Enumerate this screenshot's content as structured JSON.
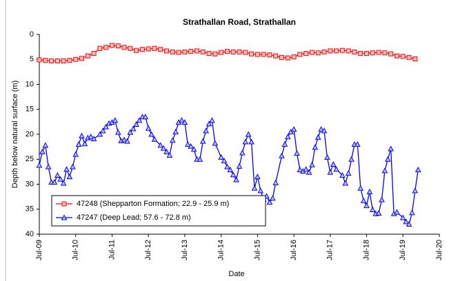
{
  "chart_data": {
    "type": "line",
    "title": "Strathallan Road, Strathallan",
    "x_label": "Date",
    "y_label": "Depth below natural surface (m)",
    "ylim": [
      0,
      40
    ],
    "yticks": [
      0,
      5,
      10,
      15,
      20,
      25,
      30,
      35,
      40
    ],
    "y_inverted": true,
    "xlim": [
      "2009-07",
      "2020-07"
    ],
    "xticks": [
      {
        "value": "2009-07",
        "label": "Jul-09"
      },
      {
        "value": "2010-07",
        "label": "Jul-10"
      },
      {
        "value": "2011-07",
        "label": "Jul-11"
      },
      {
        "value": "2012-07",
        "label": "Jul-12"
      },
      {
        "value": "2013-07",
        "label": "Jul-13"
      },
      {
        "value": "2014-07",
        "label": "Jul-14"
      },
      {
        "value": "2015-07",
        "label": "Jul-15"
      },
      {
        "value": "2016-07",
        "label": "Jul-16"
      },
      {
        "value": "2017-07",
        "label": "Jul-17"
      },
      {
        "value": "2018-07",
        "label": "Jul-18"
      },
      {
        "value": "2019-07",
        "label": "Jul-19"
      },
      {
        "value": "2020-07",
        "label": "Jul-20"
      }
    ],
    "legend": "lower left",
    "grid": false,
    "series": [
      {
        "name": "47248 (Shepparton Formation; 22.9 - 25.9 m)",
        "color": "#ff0000",
        "marker": "square",
        "x": [
          "2009-07",
          "2009-09",
          "2009-11",
          "2010-01",
          "2010-03",
          "2010-05",
          "2010-07",
          "2010-09",
          "2010-11",
          "2011-01",
          "2011-03",
          "2011-05",
          "2011-07",
          "2011-09",
          "2011-11",
          "2012-01",
          "2012-03",
          "2012-05",
          "2012-07",
          "2012-09",
          "2012-11",
          "2013-01",
          "2013-03",
          "2013-05",
          "2013-07",
          "2013-09",
          "2013-11",
          "2014-01",
          "2014-03",
          "2014-05",
          "2014-07",
          "2014-09",
          "2014-11",
          "2015-01",
          "2015-03",
          "2015-05",
          "2015-07",
          "2015-09",
          "2015-11",
          "2016-01",
          "2016-03",
          "2016-05",
          "2016-07",
          "2016-09",
          "2016-11",
          "2017-01",
          "2017-03",
          "2017-05",
          "2017-07",
          "2017-09",
          "2017-11",
          "2018-01",
          "2018-03",
          "2018-05",
          "2018-07",
          "2018-09",
          "2018-11",
          "2019-01",
          "2019-03",
          "2019-05",
          "2019-07",
          "2019-09",
          "2019-11"
        ],
        "values": [
          5.1,
          5.2,
          5.3,
          5.3,
          5.3,
          5.2,
          5.0,
          4.8,
          4.3,
          3.8,
          2.8,
          2.6,
          2.2,
          2.3,
          2.6,
          2.8,
          3.2,
          3.0,
          2.9,
          2.8,
          3.0,
          3.3,
          3.5,
          3.6,
          3.5,
          3.4,
          3.3,
          3.5,
          3.8,
          3.9,
          3.6,
          3.4,
          3.5,
          3.5,
          3.6,
          3.9,
          4.0,
          4.0,
          4.1,
          4.3,
          4.6,
          4.7,
          4.5,
          4.0,
          3.8,
          3.6,
          3.7,
          3.5,
          3.3,
          3.3,
          3.2,
          3.3,
          3.5,
          3.8,
          3.8,
          3.7,
          3.6,
          3.7,
          3.9,
          4.3,
          4.4,
          4.6,
          4.9
        ]
      },
      {
        "name": "47247 (Deep Lead; 57.6 - 72.8 m)",
        "color": "#0000ff",
        "marker": "triangle",
        "x": [
          "2009-07",
          "2009-08",
          "2009-09",
          "2009-10",
          "2009-11",
          "2009-12",
          "2010-01",
          "2010-02",
          "2010-03",
          "2010-04",
          "2010-05",
          "2010-06",
          "2010-07",
          "2010-08",
          "2010-09",
          "2010-10",
          "2010-11",
          "2010-12",
          "2011-01",
          "2011-03",
          "2011-04",
          "2011-05",
          "2011-06",
          "2011-07",
          "2011-08",
          "2011-09",
          "2011-10",
          "2011-11",
          "2011-12",
          "2012-01",
          "2012-02",
          "2012-03",
          "2012-04",
          "2012-05",
          "2012-06",
          "2012-07",
          "2012-08",
          "2012-09",
          "2012-11",
          "2012-12",
          "2013-01",
          "2013-02",
          "2013-03",
          "2013-04",
          "2013-05",
          "2013-06",
          "2013-07",
          "2013-08",
          "2013-09",
          "2013-10",
          "2013-11",
          "2013-12",
          "2014-01",
          "2014-02",
          "2014-03",
          "2014-04",
          "2014-05",
          "2014-07",
          "2014-08",
          "2014-09",
          "2014-10",
          "2014-11",
          "2014-12",
          "2015-01",
          "2015-02",
          "2015-03",
          "2015-04",
          "2015-05",
          "2015-06",
          "2015-07",
          "2015-08",
          "2015-09",
          "2015-10",
          "2015-11",
          "2015-12",
          "2016-01",
          "2016-03",
          "2016-04",
          "2016-05",
          "2016-06",
          "2016-07",
          "2016-08",
          "2016-09",
          "2016-10",
          "2016-11",
          "2016-12",
          "2017-01",
          "2017-02",
          "2017-03",
          "2017-04",
          "2017-05",
          "2017-06",
          "2017-07",
          "2017-08",
          "2017-09",
          "2017-11",
          "2017-12",
          "2018-01",
          "2018-02",
          "2018-03",
          "2018-04",
          "2018-05",
          "2018-06",
          "2018-07",
          "2018-08",
          "2018-09",
          "2018-10",
          "2018-11",
          "2018-12",
          "2019-01",
          "2019-02",
          "2019-03",
          "2019-04",
          "2019-05",
          "2019-07",
          "2019-08",
          "2019-09",
          "2019-10",
          "2019-11",
          "2019-12"
        ],
        "values": [
          26.2,
          23.5,
          22.2,
          26.5,
          29.6,
          29.6,
          28.2,
          29,
          29.8,
          27,
          28.5,
          26.5,
          24,
          22,
          20.3,
          21.9,
          20.7,
          20.5,
          20.9,
          20,
          19.3,
          18.5,
          17.8,
          17.6,
          17.2,
          19.6,
          21.3,
          21.1,
          21.4,
          19.6,
          18.9,
          18.0,
          17.2,
          16.5,
          16.5,
          18.8,
          20.0,
          21.0,
          22.2,
          22.8,
          23.5,
          24.2,
          21.2,
          19.5,
          17.6,
          17.2,
          17.6,
          22.0,
          22.4,
          23.0,
          25.0,
          25.0,
          21.4,
          19.3,
          17.9,
          17.2,
          21.8,
          24.6,
          25.3,
          26.5,
          27.1,
          28.1,
          29.1,
          26.4,
          23.7,
          21.5,
          20.0,
          21.5,
          30.8,
          28.5,
          31.3,
          33.0,
          32.4,
          33.6,
          32.8,
          29.7,
          24.3,
          22.0,
          20.5,
          19.5,
          19.0,
          23.8,
          27.1,
          27.4,
          27.0,
          27.6,
          26.1,
          22.6,
          20.6,
          19.0,
          19.3,
          24.6,
          27.6,
          26.0,
          27.0,
          28.2,
          29.8,
          27.8,
          25.0,
          22.0,
          22.0,
          30.8,
          33.3,
          34.3,
          31.5,
          35.1,
          35.9,
          35.8,
          33.1,
          27.3,
          25.0,
          22.9,
          35.9,
          35.6,
          36.7,
          37.5,
          38.0,
          35.7,
          31.3,
          27.1
        ]
      }
    ]
  }
}
